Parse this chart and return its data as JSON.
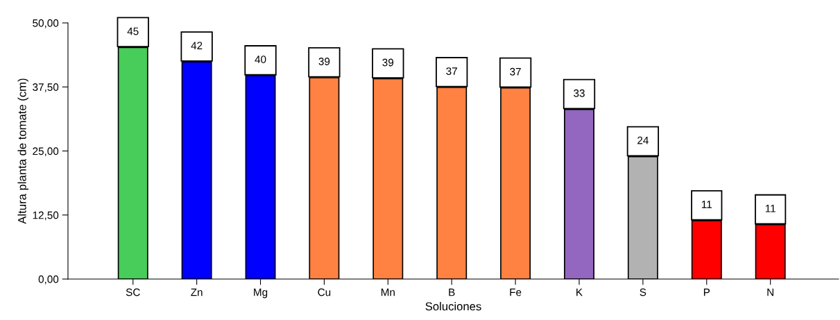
{
  "chart_data": {
    "type": "bar",
    "xlabel": "Soluciones",
    "ylabel": "Altura planta de tomate (cm)",
    "categories": [
      "SC",
      "Zn",
      "Mg",
      "Cu",
      "Mn",
      "B",
      "Fe",
      "K",
      "S",
      "P",
      "N"
    ],
    "values": [
      45.2,
      42.4,
      39.7,
      39.3,
      39.1,
      37.4,
      37.3,
      33.1,
      23.9,
      11.4,
      10.6
    ],
    "colors": [
      "#48cc5a",
      "#0000ff",
      "#0000ff",
      "#ff8243",
      "#ff8243",
      "#ff8243",
      "#ff8243",
      "#9366c0",
      "#b2b2b2",
      "#ff0000",
      "#ff0000"
    ],
    "value_labels": [
      "45",
      "42",
      "40",
      "39",
      "39",
      "37",
      "37",
      "33",
      "24",
      "11",
      "11"
    ],
    "ylim": [
      0,
      50
    ],
    "yticks": [
      {
        "value": 0,
        "label": "0,00"
      },
      {
        "value": 12.5,
        "label": "12,50"
      },
      {
        "value": 25,
        "label": "25,00"
      },
      {
        "value": 37.5,
        "label": "37,50"
      },
      {
        "value": 50,
        "label": "50,00"
      }
    ],
    "grid": false
  }
}
